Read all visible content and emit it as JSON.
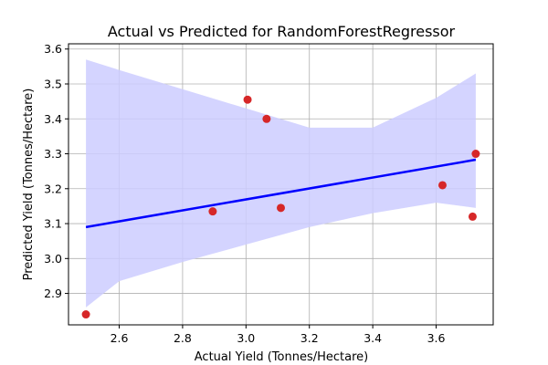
{
  "chart_data": {
    "type": "scatter",
    "title": "Actual vs Predicted for RandomForestRegressor",
    "xlabel": "Actual Yield (Tonnes/Hectare)",
    "ylabel": "Predicted Yield (Tonnes/Hectare)",
    "xlim": [
      2.44,
      3.78
    ],
    "ylim": [
      2.81,
      3.615
    ],
    "xticks": [
      2.6,
      2.8,
      3.0,
      3.2,
      3.4,
      3.6
    ],
    "xtick_labels": [
      "2.6",
      "2.8",
      "3.0",
      "3.2",
      "3.4",
      "3.6"
    ],
    "yticks": [
      2.9,
      3.0,
      3.1,
      3.2,
      3.3,
      3.4,
      3.5,
      3.6
    ],
    "ytick_labels": [
      "2.9",
      "3.0",
      "3.1",
      "3.2",
      "3.3",
      "3.4",
      "3.5",
      "3.6"
    ],
    "grid": true,
    "points": {
      "color": "#d62728",
      "x": [
        2.495,
        2.895,
        3.005,
        3.065,
        3.11,
        3.62,
        3.715,
        3.725
      ],
      "y": [
        2.84,
        3.135,
        3.455,
        3.4,
        3.145,
        3.21,
        3.12,
        3.3
      ]
    },
    "regression_line": {
      "color": "#0000ff",
      "x": [
        2.495,
        3.725
      ],
      "y": [
        3.09,
        3.283
      ]
    },
    "confidence_band": {
      "color": "#ccccff",
      "x": [
        2.495,
        2.6,
        2.8,
        3.0,
        3.2,
        3.4,
        3.6,
        3.725
      ],
      "upper": [
        3.57,
        3.54,
        3.485,
        3.43,
        3.375,
        3.375,
        3.46,
        3.53
      ],
      "lower": [
        2.86,
        2.935,
        2.99,
        3.04,
        3.09,
        3.13,
        3.16,
        3.145
      ]
    }
  }
}
